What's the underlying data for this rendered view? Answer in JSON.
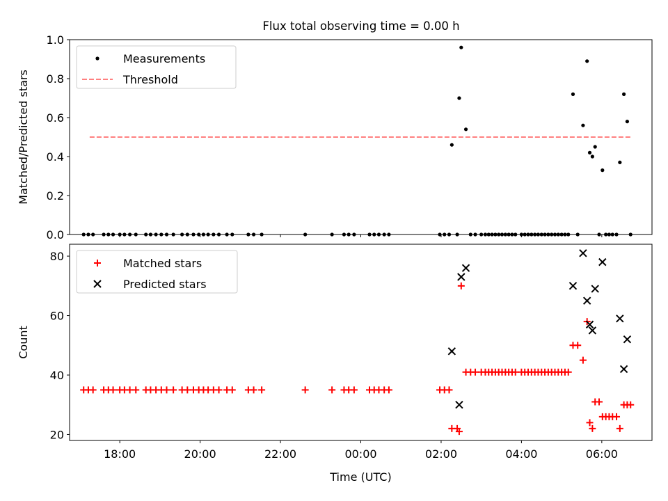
{
  "title": "Flux total observing time = 0.00 h",
  "chart_data": [
    {
      "type": "scatter",
      "ylabel": "Matched/Predicted stars",
      "xlabel": "",
      "xlim": [
        "16:45",
        "07:15"
      ],
      "ylim": [
        0,
        1.0
      ],
      "yticks": [
        "0.0",
        "0.2",
        "0.4",
        "0.6",
        "0.8",
        "1.0"
      ],
      "legend": {
        "placement": "top-left",
        "entries": [
          "Measurements",
          "Threshold"
        ]
      },
      "threshold": {
        "name": "Threshold",
        "value": 0.5,
        "x_range": [
          "17:15",
          "06:45"
        ],
        "color": "#ff8080"
      },
      "series": [
        {
          "name": "Measurements",
          "color": "#000000",
          "points": [
            [
              "17:06",
              0
            ],
            [
              "17:13",
              0
            ],
            [
              "17:20",
              0
            ],
            [
              "17:36",
              0
            ],
            [
              "17:43",
              0
            ],
            [
              "17:50",
              0
            ],
            [
              "18:00",
              0
            ],
            [
              "18:07",
              0
            ],
            [
              "18:15",
              0
            ],
            [
              "18:24",
              0
            ],
            [
              "18:39",
              0
            ],
            [
              "18:46",
              0
            ],
            [
              "18:54",
              0
            ],
            [
              "19:02",
              0
            ],
            [
              "19:10",
              0
            ],
            [
              "19:20",
              0
            ],
            [
              "19:33",
              0
            ],
            [
              "19:41",
              0
            ],
            [
              "19:50",
              0
            ],
            [
              "19:58",
              0
            ],
            [
              "20:05",
              0
            ],
            [
              "20:12",
              0
            ],
            [
              "20:20",
              0
            ],
            [
              "20:28",
              0
            ],
            [
              "20:40",
              0
            ],
            [
              "20:48",
              0
            ],
            [
              "21:12",
              0
            ],
            [
              "21:20",
              0
            ],
            [
              "21:32",
              0
            ],
            [
              "22:37",
              0
            ],
            [
              "23:17",
              0
            ],
            [
              "23:35",
              0
            ],
            [
              "23:42",
              0
            ],
            [
              "23:50",
              0
            ],
            [
              "00:13",
              0
            ],
            [
              "00:20",
              0
            ],
            [
              "00:27",
              0
            ],
            [
              "00:35",
              0
            ],
            [
              "00:42",
              0
            ],
            [
              "01:58",
              0
            ],
            [
              "02:05",
              0
            ],
            [
              "02:12",
              0
            ],
            [
              "02:16",
              0.46
            ],
            [
              "02:24",
              0
            ],
            [
              "02:27",
              0.7
            ],
            [
              "02:30",
              0.96
            ],
            [
              "02:37",
              0.54
            ],
            [
              "02:44",
              0
            ],
            [
              "02:51",
              0
            ],
            [
              "03:00",
              0
            ],
            [
              "03:06",
              0
            ],
            [
              "03:11",
              0
            ],
            [
              "03:16",
              0
            ],
            [
              "03:21",
              0
            ],
            [
              "03:26",
              0
            ],
            [
              "03:31",
              0
            ],
            [
              "03:36",
              0
            ],
            [
              "03:41",
              0
            ],
            [
              "03:46",
              0
            ],
            [
              "03:51",
              0
            ],
            [
              "04:00",
              0
            ],
            [
              "04:05",
              0
            ],
            [
              "04:10",
              0
            ],
            [
              "04:15",
              0
            ],
            [
              "04:20",
              0
            ],
            [
              "04:25",
              0
            ],
            [
              "04:30",
              0
            ],
            [
              "04:35",
              0
            ],
            [
              "04:40",
              0
            ],
            [
              "04:45",
              0
            ],
            [
              "04:50",
              0
            ],
            [
              "04:55",
              0
            ],
            [
              "05:00",
              0
            ],
            [
              "05:05",
              0
            ],
            [
              "05:10",
              0
            ],
            [
              "05:17",
              0.72
            ],
            [
              "05:24",
              0
            ],
            [
              "05:32",
              0.56
            ],
            [
              "05:38",
              0.89
            ],
            [
              "05:42",
              0.42
            ],
            [
              "05:46",
              0.4
            ],
            [
              "05:50",
              0.45
            ],
            [
              "05:56",
              0
            ],
            [
              "06:01",
              0.33
            ],
            [
              "06:06",
              0
            ],
            [
              "06:11",
              0
            ],
            [
              "06:16",
              0
            ],
            [
              "06:22",
              0
            ],
            [
              "06:27",
              0.37
            ],
            [
              "06:33",
              0.72
            ],
            [
              "06:38",
              0.58
            ],
            [
              "06:43",
              0
            ]
          ]
        }
      ]
    },
    {
      "type": "scatter",
      "ylabel": "Count",
      "xlabel": "Time (UTC)",
      "xlim": [
        "16:45",
        "07:15"
      ],
      "ylim": [
        18,
        84
      ],
      "yticks": [
        "20",
        "40",
        "60",
        "80"
      ],
      "xticks": [
        "18:00",
        "20:00",
        "22:00",
        "00:00",
        "02:00",
        "04:00",
        "06:00"
      ],
      "legend": {
        "placement": "top-left",
        "entries": [
          "Matched stars",
          "Predicted stars"
        ]
      },
      "series": [
        {
          "name": "Matched stars",
          "marker": "plus",
          "color": "#ff0000",
          "points": [
            [
              "17:06",
              35
            ],
            [
              "17:13",
              35
            ],
            [
              "17:20",
              35
            ],
            [
              "17:36",
              35
            ],
            [
              "17:43",
              35
            ],
            [
              "17:50",
              35
            ],
            [
              "18:00",
              35
            ],
            [
              "18:07",
              35
            ],
            [
              "18:15",
              35
            ],
            [
              "18:24",
              35
            ],
            [
              "18:39",
              35
            ],
            [
              "18:46",
              35
            ],
            [
              "18:54",
              35
            ],
            [
              "19:02",
              35
            ],
            [
              "19:10",
              35
            ],
            [
              "19:20",
              35
            ],
            [
              "19:33",
              35
            ],
            [
              "19:41",
              35
            ],
            [
              "19:50",
              35
            ],
            [
              "19:58",
              35
            ],
            [
              "20:05",
              35
            ],
            [
              "20:12",
              35
            ],
            [
              "20:20",
              35
            ],
            [
              "20:28",
              35
            ],
            [
              "20:40",
              35
            ],
            [
              "20:48",
              35
            ],
            [
              "21:12",
              35
            ],
            [
              "21:20",
              35
            ],
            [
              "21:32",
              35
            ],
            [
              "22:37",
              35
            ],
            [
              "23:17",
              35
            ],
            [
              "23:35",
              35
            ],
            [
              "23:42",
              35
            ],
            [
              "23:50",
              35
            ],
            [
              "00:13",
              35
            ],
            [
              "00:20",
              35
            ],
            [
              "00:27",
              35
            ],
            [
              "00:35",
              35
            ],
            [
              "00:42",
              35
            ],
            [
              "01:58",
              35
            ],
            [
              "02:05",
              35
            ],
            [
              "02:12",
              35
            ],
            [
              "02:16",
              22
            ],
            [
              "02:24",
              22
            ],
            [
              "02:27",
              21
            ],
            [
              "02:30",
              70
            ],
            [
              "02:37",
              41
            ],
            [
              "02:44",
              41
            ],
            [
              "02:51",
              41
            ],
            [
              "03:00",
              41
            ],
            [
              "03:06",
              41
            ],
            [
              "03:11",
              41
            ],
            [
              "03:16",
              41
            ],
            [
              "03:21",
              41
            ],
            [
              "03:26",
              41
            ],
            [
              "03:31",
              41
            ],
            [
              "03:36",
              41
            ],
            [
              "03:41",
              41
            ],
            [
              "03:46",
              41
            ],
            [
              "03:51",
              41
            ],
            [
              "04:00",
              41
            ],
            [
              "04:05",
              41
            ],
            [
              "04:10",
              41
            ],
            [
              "04:15",
              41
            ],
            [
              "04:20",
              41
            ],
            [
              "04:25",
              41
            ],
            [
              "04:30",
              41
            ],
            [
              "04:35",
              41
            ],
            [
              "04:40",
              41
            ],
            [
              "04:45",
              41
            ],
            [
              "04:50",
              41
            ],
            [
              "04:55",
              41
            ],
            [
              "05:00",
              41
            ],
            [
              "05:05",
              41
            ],
            [
              "05:10",
              41
            ],
            [
              "05:17",
              50
            ],
            [
              "05:24",
              50
            ],
            [
              "05:32",
              45
            ],
            [
              "05:38",
              58
            ],
            [
              "05:42",
              24
            ],
            [
              "05:46",
              22
            ],
            [
              "05:50",
              31
            ],
            [
              "05:56",
              31
            ],
            [
              "06:01",
              26
            ],
            [
              "06:06",
              26
            ],
            [
              "06:11",
              26
            ],
            [
              "06:16",
              26
            ],
            [
              "06:22",
              26
            ],
            [
              "06:27",
              22
            ],
            [
              "06:33",
              30
            ],
            [
              "06:38",
              30
            ],
            [
              "06:43",
              30
            ]
          ]
        },
        {
          "name": "Predicted stars",
          "marker": "x",
          "color": "#000000",
          "points": [
            [
              "02:16",
              48
            ],
            [
              "02:27",
              30
            ],
            [
              "02:30",
              73
            ],
            [
              "02:37",
              76
            ],
            [
              "05:17",
              70
            ],
            [
              "05:32",
              81
            ],
            [
              "05:38",
              65
            ],
            [
              "05:42",
              57
            ],
            [
              "05:46",
              55
            ],
            [
              "05:50",
              69
            ],
            [
              "06:01",
              78
            ],
            [
              "06:27",
              59
            ],
            [
              "06:33",
              42
            ],
            [
              "06:38",
              52
            ]
          ]
        }
      ]
    }
  ]
}
